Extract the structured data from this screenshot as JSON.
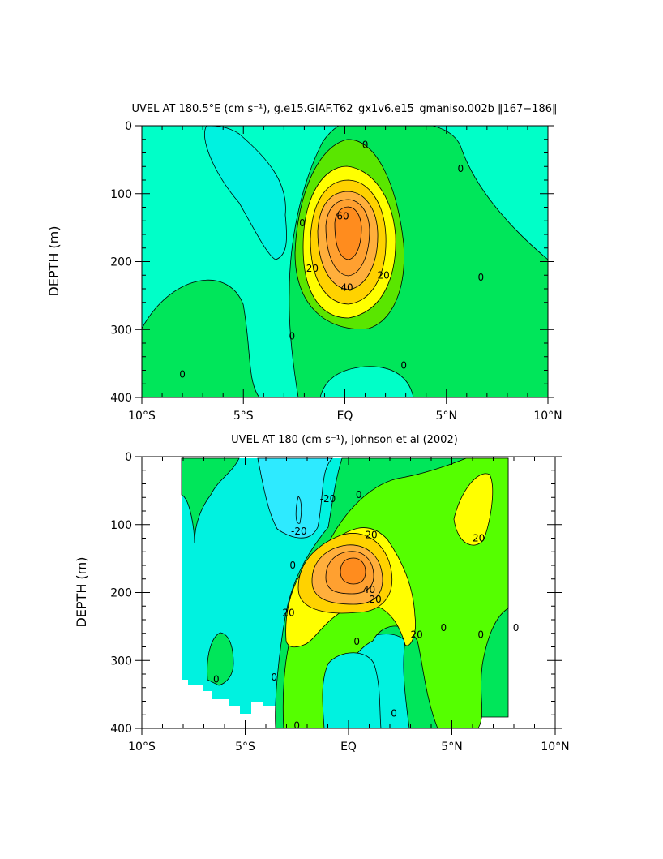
{
  "chart_data": [
    {
      "type": "contour",
      "title": "UVEL AT 180.5°E (cm s⁻¹), g.e15.GIAF.T62_gx1v6.e15_gmaniso.002b ‖167−186‖",
      "ylabel": "DEPTH (m)",
      "xlim": [
        -10,
        10
      ],
      "ylim": [
        400,
        0
      ],
      "x_ticks": [
        -10,
        -5,
        0,
        5,
        10
      ],
      "x_tick_labels": [
        "10°S",
        "5°S",
        "EQ",
        "5°N",
        "10°N"
      ],
      "y_ticks": [
        0,
        100,
        200,
        300,
        400
      ],
      "y_tick_labels": [
        "0",
        "100",
        "200",
        "300",
        "400"
      ],
      "contour_labels": [
        {
          "text": "60",
          "x": -0.1,
          "y": 133
        },
        {
          "text": "40",
          "x": 0.1,
          "y": 238
        },
        {
          "text": "20",
          "x": -1.6,
          "y": 210
        },
        {
          "text": "20",
          "x": 1.9,
          "y": 220
        },
        {
          "text": "0",
          "x": 1.0,
          "y": 28
        },
        {
          "text": "0",
          "x": 5.7,
          "y": 63
        },
        {
          "text": "0",
          "x": -2.1,
          "y": 143
        },
        {
          "text": "0",
          "x": 6.7,
          "y": 223
        },
        {
          "text": "0",
          "x": -2.6,
          "y": 310
        },
        {
          "text": "0",
          "x": 2.9,
          "y": 353
        },
        {
          "text": "0",
          "x": -8.0,
          "y": 366
        }
      ]
    },
    {
      "type": "contour",
      "title": "UVEL AT 180 (cm s⁻¹), Johnson et al (2002)",
      "ylabel": "DEPTH (m)",
      "xlim": [
        -10,
        10
      ],
      "ylim": [
        400,
        0
      ],
      "x_ticks": [
        -10,
        -5,
        0,
        5,
        10
      ],
      "x_tick_labels": [
        "10°S",
        "5°S",
        "EQ",
        "5°N",
        "10°N"
      ],
      "y_ticks": [
        0,
        100,
        200,
        300,
        400
      ],
      "y_tick_labels": [
        "0",
        "100",
        "200",
        "300",
        "400"
      ],
      "contour_labels": [
        {
          "text": "-20",
          "x": -2.4,
          "y": 110
        },
        {
          "text": "-20",
          "x": -1.0,
          "y": 62
        },
        {
          "text": "20",
          "x": 1.1,
          "y": 115
        },
        {
          "text": "20",
          "x": 6.3,
          "y": 120
        },
        {
          "text": "20",
          "x": -2.9,
          "y": 230
        },
        {
          "text": "20",
          "x": 1.3,
          "y": 210
        },
        {
          "text": "20",
          "x": 3.3,
          "y": 262
        },
        {
          "text": "40",
          "x": 1.0,
          "y": 196
        },
        {
          "text": "0",
          "x": 0.5,
          "y": 56
        },
        {
          "text": "0",
          "x": -2.7,
          "y": 160
        },
        {
          "text": "0",
          "x": 0.4,
          "y": 272
        },
        {
          "text": "0",
          "x": 4.6,
          "y": 252
        },
        {
          "text": "0",
          "x": 6.4,
          "y": 262
        },
        {
          "text": "0",
          "x": 8.1,
          "y": 252
        },
        {
          "text": "0",
          "x": -3.6,
          "y": 325
        },
        {
          "text": "0",
          "x": -6.4,
          "y": 328
        },
        {
          "text": "0",
          "x": 2.2,
          "y": 378
        },
        {
          "text": "0",
          "x": -2.5,
          "y": 396
        }
      ]
    }
  ]
}
